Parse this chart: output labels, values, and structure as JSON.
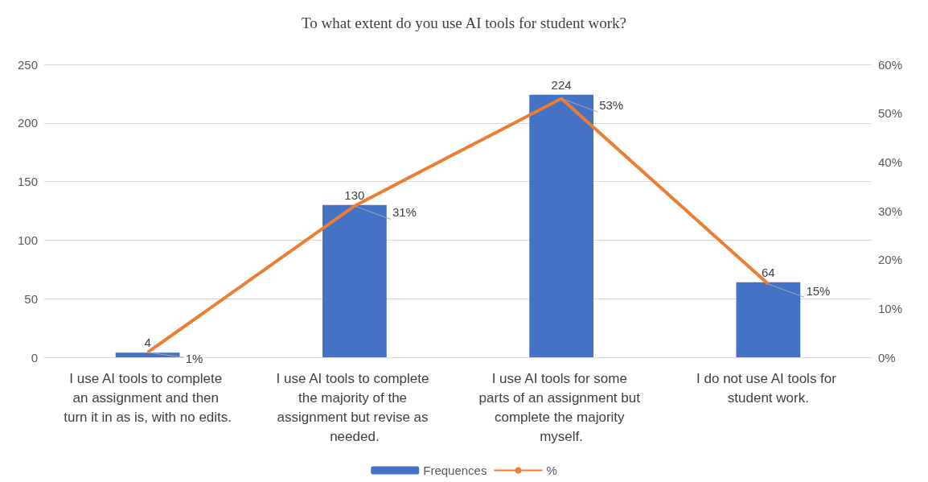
{
  "chart_data": {
    "type": "bar",
    "title": "To what extent do you use AI tools for student work?",
    "categories": [
      "I use AI tools to complete an assignment and then turn it in as is, with no edits.",
      "I use AI tools to complete the majority of the assignment but revise as needed.",
      "I use AI tools for some parts of an assignment but complete the majority myself.",
      "I do not use AI tools for student work."
    ],
    "series": [
      {
        "name": "Frequences",
        "color": "#4472c4",
        "values": [
          4,
          130,
          224,
          64
        ],
        "value_labels": [
          "4",
          "130",
          "224",
          "64"
        ]
      },
      {
        "name": "%",
        "type": "line",
        "axis": "y2",
        "color": "#ed7d31",
        "values": [
          1,
          31,
          53,
          15
        ],
        "value_labels": [
          "1%",
          "31%",
          "53%",
          "15%"
        ]
      }
    ],
    "ylim": [
      0,
      250
    ],
    "yticks": [
      0,
      50,
      100,
      150,
      200,
      250
    ],
    "y2lim": [
      0,
      60
    ],
    "y2ticks": [
      {
        "value": 0,
        "label": "0%"
      },
      {
        "value": 10,
        "label": "10%"
      },
      {
        "value": 20,
        "label": "20%"
      },
      {
        "value": 30,
        "label": "30%"
      },
      {
        "value": 40,
        "label": "40%"
      },
      {
        "value": 50,
        "label": "50%"
      },
      {
        "value": 60,
        "label": "60%"
      }
    ],
    "grid": "y",
    "legend": "bottom",
    "marker": "none"
  }
}
